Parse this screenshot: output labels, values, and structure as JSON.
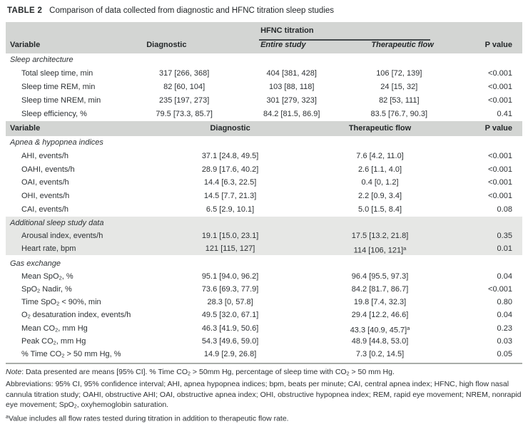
{
  "title": {
    "label": "TABLE 2",
    "text": "Comparison of data collected from diagnostic and HFNC titration sleep studies"
  },
  "header_top": {
    "variable": "Variable",
    "diagnostic": "Diagnostic",
    "group": "HFNC titration",
    "entire_study": "Entire study",
    "therapeutic_flow": "Therapeutic flow",
    "p_value": "P value"
  },
  "header_mid": {
    "variable": "Variable",
    "diagnostic": "Diagnostic",
    "therapeutic_flow": "Therapeutic flow",
    "p_value": "P value"
  },
  "sections": {
    "sleep_architecture": {
      "label": "Sleep architecture",
      "rows": [
        {
          "label": "Total sleep time, min",
          "diagnostic": "317 [266, 368]",
          "entire_study": "404 [381, 428]",
          "therapeutic_flow": "106 [72, 139]",
          "p": "<0.001"
        },
        {
          "label": "Sleep time REM, min",
          "diagnostic": "82 [60, 104]",
          "entire_study": "103 [88, 118]",
          "therapeutic_flow": "24 [15, 32]",
          "p": "<0.001"
        },
        {
          "label": "Sleep time NREM, min",
          "diagnostic": "235 [197, 273]",
          "entire_study": "301 [279, 323]",
          "therapeutic_flow": "82 [53, 111]",
          "p": "<0.001"
        },
        {
          "label": "Sleep efficiency, %",
          "diagnostic": "79.5 [73.3, 85.7]",
          "entire_study": "84.2 [81.5, 86.9]",
          "therapeutic_flow": "83.5 [76.7, 90.3]",
          "p": "0.41"
        }
      ]
    },
    "apnea_hypopnea": {
      "label": "Apnea & hypopnea indices",
      "rows": [
        {
          "label": "AHI, events/h",
          "diagnostic": "37.1 [24.8, 49.5]",
          "therapeutic_flow": "7.6 [4.2, 11.0]",
          "p": "<0.001"
        },
        {
          "label": "OAHI, events/h",
          "diagnostic": "28.9 [17.6, 40.2]",
          "therapeutic_flow": "2.6 [1.1, 4.0]",
          "p": "<0.001"
        },
        {
          "label": "OAI, events/h",
          "diagnostic": "14.4 [6.3, 22.5]",
          "therapeutic_flow": "0.4 [0, 1.2]",
          "p": "<0.001"
        },
        {
          "label": "OHI, events/h",
          "diagnostic": "14.5 [7.7, 21.3]",
          "therapeutic_flow": "2.2 [0.9, 3.4]",
          "p": "<0.001"
        },
        {
          "label": "CAI, events/h",
          "diagnostic": "6.5 [2.9, 10.1]",
          "therapeutic_flow": "5.0 [1.5, 8.4]",
          "p": "0.08"
        }
      ]
    },
    "additional": {
      "label": "Additional sleep study data",
      "rows": [
        {
          "label": "Arousal index, events/h",
          "diagnostic": "19.1 [15.0, 23.1]",
          "therapeutic_flow": "17.5 [13.2, 21.8]",
          "p": "0.35"
        },
        {
          "label": "Heart rate, bpm",
          "diagnostic": "121 [115, 127]",
          "therapeutic_flow": "114 [106, 121]^a^",
          "p": "0.01"
        }
      ]
    },
    "gas_exchange": {
      "label": "Gas exchange",
      "rows": [
        {
          "label": "Mean SpO~2~, %",
          "diagnostic": "95.1 [94.0, 96.2]",
          "therapeutic_flow": "96.4 [95.5, 97.3]",
          "p": "0.04"
        },
        {
          "label": "SpO~2~ Nadir, %",
          "diagnostic": "73.6 [69.3, 77.9]",
          "therapeutic_flow": "84.2 [81.7, 86.7]",
          "p": "<0.001"
        },
        {
          "label": "Time SpO~2~ < 90%, min",
          "diagnostic": "28.3 [0, 57.8]",
          "therapeutic_flow": "19.8 [7.4, 32.3]",
          "p": "0.80"
        },
        {
          "label": "O~2~ desaturation index, events/h",
          "diagnostic": "49.5 [32.0, 67.1]",
          "therapeutic_flow": "29.4 [12.2, 46.6]",
          "p": "0.04"
        },
        {
          "label": "Mean CO~2~, mm Hg",
          "diagnostic": "46.3 [41.9, 50.6]",
          "therapeutic_flow": "43.3 [40.9, 45.7]^a^",
          "p": "0.23"
        },
        {
          "label": "Peak CO~2~, mm Hg",
          "diagnostic": "54.3 [49.6, 59.0]",
          "therapeutic_flow": "48.9 [44.8, 53.0]",
          "p": "0.03"
        },
        {
          "label": "% Time CO~2~ > 50 mm Hg, %",
          "diagnostic": "14.9 [2.9, 26.8]",
          "therapeutic_flow": "7.3 [0.2, 14.5]",
          "p": "0.05"
        }
      ]
    }
  },
  "notes": {
    "note_label": "Note",
    "note_text": ": Data presented are means [95% CI]. % Time CO~2~ > 50mm Hg, percentage of sleep time with CO~2~ > 50 mm Hg.",
    "abbreviations": "Abbreviations: 95% CI, 95% confidence interval; AHI, apnea hypopnea indices; bpm, beats per minute; CAI, central apnea index; HFNC, high flow nasal cannula titration study; OAHI, obstructive AHI; OAI, obstructive apnea index; OHI, obstructive hypopnea index; REM, rapid eye movement; NREM, nonrapid eye movement; SpO~2~, oxyhemoglobin saturation.",
    "footnote_a": "^a^Value includes all flow rates tested during titration in addition to therapeutic flow rate."
  },
  "colors": {
    "header_band": "#d3d5d3",
    "section_band": "#e6e7e5",
    "text": "#2d3134",
    "rule": "#a9aca9"
  }
}
